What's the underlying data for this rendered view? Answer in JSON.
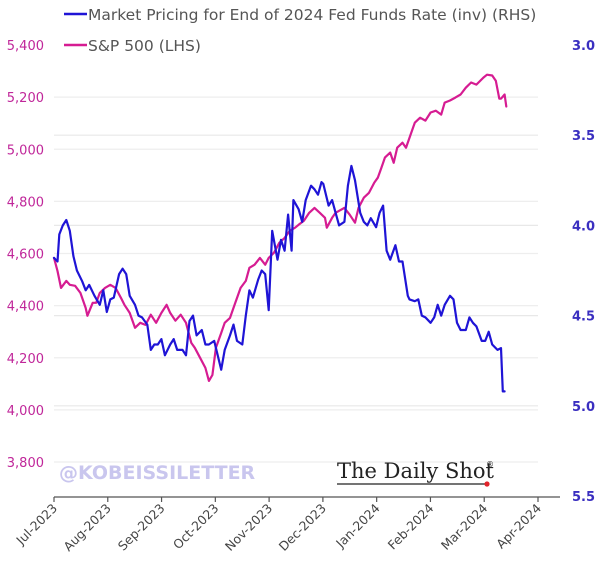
{
  "chart_data": {
    "type": "line",
    "title": "",
    "legend": [
      {
        "name": "Market Pricing for End of 2024 Fed Funds Rate (inv) (RHS)",
        "color": "#1f14d6"
      },
      {
        "name": "S&P 500 (LHS)",
        "color": "#d61c92"
      }
    ],
    "legend_placement": "top-left",
    "xlabel": "",
    "ylabel_left": "",
    "ylabel_right": "",
    "x_range": [
      "2023-07-01",
      "2024-04-01"
    ],
    "x_ticks": [
      "Jul-2023",
      "Aug-2023",
      "Sep-2023",
      "Oct-2023",
      "Nov-2023",
      "Dec-2023",
      "Jan-2024",
      "Feb-2024",
      "Mar-2024",
      "Apr-2024"
    ],
    "y_left": {
      "range": [
        3800,
        5400
      ],
      "ticks": [
        "5,400",
        "5,200",
        "5,000",
        "4,800",
        "4,600",
        "4,400",
        "4,200",
        "4,000",
        "3,800"
      ],
      "tick_values": [
        5400,
        5200,
        5000,
        4800,
        4600,
        4400,
        4200,
        4000,
        3800
      ]
    },
    "y_right": {
      "range": [
        3.0,
        5.5
      ],
      "inverted": true,
      "ticks": [
        "3.0",
        "3.5",
        "4.0",
        "4.5",
        "5.0",
        "5.5"
      ],
      "tick_values": [
        3.0,
        3.5,
        4.0,
        4.5,
        5.0,
        5.5
      ]
    },
    "grid": true,
    "series": [
      {
        "name": "S&P 500 (LHS)",
        "axis": "left",
        "color": "#d61c92",
        "points": [
          [
            "2023-07-01",
            4583
          ],
          [
            "2023-07-03",
            4533
          ],
          [
            "2023-07-05",
            4468
          ],
          [
            "2023-07-08",
            4495
          ],
          [
            "2023-07-10",
            4480
          ],
          [
            "2023-07-13",
            4476
          ],
          [
            "2023-07-16",
            4449
          ],
          [
            "2023-07-19",
            4391
          ],
          [
            "2023-07-20",
            4361
          ],
          [
            "2023-07-23",
            4411
          ],
          [
            "2023-07-25",
            4411
          ],
          [
            "2023-07-27",
            4449
          ],
          [
            "2023-07-30",
            4468
          ],
          [
            "2023-08-02",
            4480
          ],
          [
            "2023-08-05",
            4468
          ],
          [
            "2023-08-08",
            4430
          ],
          [
            "2023-08-10",
            4403
          ],
          [
            "2023-08-13",
            4372
          ],
          [
            "2023-08-16",
            4315
          ],
          [
            "2023-08-19",
            4334
          ],
          [
            "2023-08-22",
            4326
          ],
          [
            "2023-08-25",
            4365
          ],
          [
            "2023-08-28",
            4334
          ],
          [
            "2023-08-31",
            4372
          ],
          [
            "2023-09-03",
            4403
          ],
          [
            "2023-09-05",
            4372
          ],
          [
            "2023-09-08",
            4342
          ],
          [
            "2023-09-11",
            4365
          ],
          [
            "2023-09-14",
            4334
          ],
          [
            "2023-09-17",
            4257
          ],
          [
            "2023-09-19",
            4238
          ],
          [
            "2023-09-22",
            4200
          ],
          [
            "2023-09-25",
            4161
          ],
          [
            "2023-09-27",
            4111
          ],
          [
            "2023-09-29",
            4134
          ],
          [
            "2023-10-01",
            4238
          ],
          [
            "2023-10-04",
            4295
          ],
          [
            "2023-10-06",
            4334
          ],
          [
            "2023-10-09",
            4353
          ],
          [
            "2023-10-12",
            4411
          ],
          [
            "2023-10-15",
            4468
          ],
          [
            "2023-10-18",
            4495
          ],
          [
            "2023-10-20",
            4545
          ],
          [
            "2023-10-23",
            4557
          ],
          [
            "2023-10-26",
            4583
          ],
          [
            "2023-10-29",
            4557
          ],
          [
            "2023-10-31",
            4583
          ],
          [
            "2023-11-03",
            4603
          ],
          [
            "2023-11-06",
            4641
          ],
          [
            "2023-11-09",
            4660
          ],
          [
            "2023-11-12",
            4687
          ],
          [
            "2023-11-15",
            4699
          ],
          [
            "2023-11-17",
            4710
          ],
          [
            "2023-11-20",
            4726
          ],
          [
            "2023-11-23",
            4756
          ],
          [
            "2023-11-26",
            4775
          ],
          [
            "2023-11-29",
            4756
          ],
          [
            "2023-12-02",
            4737
          ],
          [
            "2023-12-03",
            4699
          ],
          [
            "2023-12-06",
            4737
          ],
          [
            "2023-12-08",
            4756
          ],
          [
            "2023-12-10",
            4764
          ],
          [
            "2023-12-13",
            4775
          ],
          [
            "2023-12-16",
            4749
          ],
          [
            "2023-12-19",
            4718
          ],
          [
            "2023-12-21",
            4775
          ],
          [
            "2023-12-24",
            4814
          ],
          [
            "2023-12-27",
            4833
          ],
          [
            "2023-12-30",
            4872
          ],
          [
            "2024-01-01",
            4891
          ],
          [
            "2024-01-03",
            4929
          ],
          [
            "2024-01-05",
            4968
          ],
          [
            "2024-01-08",
            4987
          ],
          [
            "2024-01-10",
            4948
          ],
          [
            "2024-01-12",
            5006
          ],
          [
            "2024-01-15",
            5025
          ],
          [
            "2024-01-17",
            5006
          ],
          [
            "2024-01-20",
            5064
          ],
          [
            "2024-01-22",
            5102
          ],
          [
            "2024-01-25",
            5121
          ],
          [
            "2024-01-28",
            5110
          ],
          [
            "2024-01-31",
            5141
          ],
          [
            "2024-02-03",
            5148
          ],
          [
            "2024-02-06",
            5133
          ],
          [
            "2024-02-08",
            5179
          ],
          [
            "2024-02-11",
            5187
          ],
          [
            "2024-02-14",
            5198
          ],
          [
            "2024-02-17",
            5210
          ],
          [
            "2024-02-20",
            5236
          ],
          [
            "2024-02-23",
            5256
          ],
          [
            "2024-02-26",
            5248
          ],
          [
            "2024-03-01",
            5275
          ],
          [
            "2024-03-03",
            5286
          ],
          [
            "2024-03-06",
            5283
          ],
          [
            "2024-03-08",
            5263
          ],
          [
            "2024-03-10",
            5194
          ],
          [
            "2024-03-11",
            5194
          ],
          [
            "2024-03-13",
            5210
          ],
          [
            "2024-03-14",
            5164
          ]
        ]
      },
      {
        "name": "Market Pricing for End of 2024 Fed Funds Rate (inv) (RHS)",
        "axis": "right",
        "color": "#1f14d6",
        "points": [
          [
            "2023-07-01",
            4.18
          ],
          [
            "2023-07-03",
            4.2
          ],
          [
            "2023-07-04",
            4.05
          ],
          [
            "2023-07-06",
            4.0
          ],
          [
            "2023-07-08",
            3.97
          ],
          [
            "2023-07-10",
            4.03
          ],
          [
            "2023-07-12",
            4.17
          ],
          [
            "2023-07-14",
            4.25
          ],
          [
            "2023-07-17",
            4.31
          ],
          [
            "2023-07-19",
            4.36
          ],
          [
            "2023-07-21",
            4.33
          ],
          [
            "2023-07-24",
            4.39
          ],
          [
            "2023-07-27",
            4.44
          ],
          [
            "2023-07-29",
            4.36
          ],
          [
            "2023-07-31",
            4.48
          ],
          [
            "2023-08-02",
            4.41
          ],
          [
            "2023-08-04",
            4.4
          ],
          [
            "2023-08-07",
            4.27
          ],
          [
            "2023-08-09",
            4.24
          ],
          [
            "2023-08-11",
            4.27
          ],
          [
            "2023-08-13",
            4.39
          ],
          [
            "2023-08-16",
            4.44
          ],
          [
            "2023-08-18",
            4.5
          ],
          [
            "2023-08-20",
            4.51
          ],
          [
            "2023-08-23",
            4.55
          ],
          [
            "2023-08-25",
            4.69
          ],
          [
            "2023-08-27",
            4.66
          ],
          [
            "2023-08-29",
            4.66
          ],
          [
            "2023-08-31",
            4.63
          ],
          [
            "2023-09-02",
            4.72
          ],
          [
            "2023-09-05",
            4.66
          ],
          [
            "2023-09-07",
            4.63
          ],
          [
            "2023-09-09",
            4.69
          ],
          [
            "2023-09-12",
            4.69
          ],
          [
            "2023-09-14",
            4.72
          ],
          [
            "2023-09-16",
            4.53
          ],
          [
            "2023-09-18",
            4.5
          ],
          [
            "2023-09-20",
            4.61
          ],
          [
            "2023-09-23",
            4.58
          ],
          [
            "2023-09-25",
            4.66
          ],
          [
            "2023-09-27",
            4.66
          ],
          [
            "2023-09-30",
            4.64
          ],
          [
            "2023-10-02",
            4.72
          ],
          [
            "2023-10-04",
            4.8
          ],
          [
            "2023-10-06",
            4.69
          ],
          [
            "2023-10-09",
            4.61
          ],
          [
            "2023-10-11",
            4.55
          ],
          [
            "2023-10-13",
            4.64
          ],
          [
            "2023-10-16",
            4.66
          ],
          [
            "2023-10-18",
            4.5
          ],
          [
            "2023-10-20",
            4.36
          ],
          [
            "2023-10-22",
            4.4
          ],
          [
            "2023-10-25",
            4.3
          ],
          [
            "2023-10-27",
            4.25
          ],
          [
            "2023-10-29",
            4.27
          ],
          [
            "2023-10-31",
            4.47
          ],
          [
            "2023-11-02",
            4.03
          ],
          [
            "2023-11-05",
            4.19
          ],
          [
            "2023-11-07",
            4.08
          ],
          [
            "2023-11-09",
            4.14
          ],
          [
            "2023-11-11",
            3.94
          ],
          [
            "2023-11-13",
            4.14
          ],
          [
            "2023-11-14",
            3.86
          ],
          [
            "2023-11-17",
            3.91
          ],
          [
            "2023-11-19",
            3.98
          ],
          [
            "2023-11-21",
            3.86
          ],
          [
            "2023-11-24",
            3.78
          ],
          [
            "2023-11-26",
            3.8
          ],
          [
            "2023-11-28",
            3.83
          ],
          [
            "2023-11-30",
            3.76
          ],
          [
            "2023-12-01",
            3.77
          ],
          [
            "2023-12-04",
            3.89
          ],
          [
            "2023-12-06",
            3.86
          ],
          [
            "2023-12-08",
            3.93
          ],
          [
            "2023-12-10",
            4.0
          ],
          [
            "2023-12-13",
            3.98
          ],
          [
            "2023-12-15",
            3.78
          ],
          [
            "2023-12-17",
            3.67
          ],
          [
            "2023-12-19",
            3.75
          ],
          [
            "2023-12-22",
            3.93
          ],
          [
            "2023-12-24",
            3.98
          ],
          [
            "2023-12-26",
            4.0
          ],
          [
            "2023-12-28",
            3.96
          ],
          [
            "2023-12-31",
            4.01
          ],
          [
            "2024-01-02",
            3.93
          ],
          [
            "2024-01-04",
            3.89
          ],
          [
            "2024-01-06",
            4.14
          ],
          [
            "2024-01-08",
            4.19
          ],
          [
            "2024-01-11",
            4.11
          ],
          [
            "2024-01-13",
            4.2
          ],
          [
            "2024-01-15",
            4.2
          ],
          [
            "2024-01-18",
            4.39
          ],
          [
            "2024-01-19",
            4.41
          ],
          [
            "2024-01-22",
            4.42
          ],
          [
            "2024-01-24",
            4.41
          ],
          [
            "2024-01-26",
            4.5
          ],
          [
            "2024-01-28",
            4.51
          ],
          [
            "2024-01-31",
            4.54
          ],
          [
            "2024-02-02",
            4.51
          ],
          [
            "2024-02-04",
            4.44
          ],
          [
            "2024-02-06",
            4.5
          ],
          [
            "2024-02-08",
            4.44
          ],
          [
            "2024-02-11",
            4.39
          ],
          [
            "2024-02-13",
            4.41
          ],
          [
            "2024-02-15",
            4.54
          ],
          [
            "2024-02-17",
            4.58
          ],
          [
            "2024-02-20",
            4.58
          ],
          [
            "2024-02-22",
            4.51
          ],
          [
            "2024-02-24",
            4.54
          ],
          [
            "2024-02-26",
            4.56
          ],
          [
            "2024-02-29",
            4.64
          ],
          [
            "2024-03-02",
            4.64
          ],
          [
            "2024-03-04",
            4.59
          ],
          [
            "2024-03-06",
            4.66
          ],
          [
            "2024-03-09",
            4.69
          ],
          [
            "2024-03-11",
            4.68
          ],
          [
            "2024-03-12",
            4.92
          ],
          [
            "2024-03-13",
            4.92
          ]
        ]
      }
    ],
    "annotations": [
      "@KOBEISSILETTER",
      "The Daily Shot"
    ]
  },
  "watermarks": {
    "kobeissi": "@KOBEISSILETTER",
    "daily_shot": "The Daily Shot",
    "daily_shot_mark": "®"
  }
}
